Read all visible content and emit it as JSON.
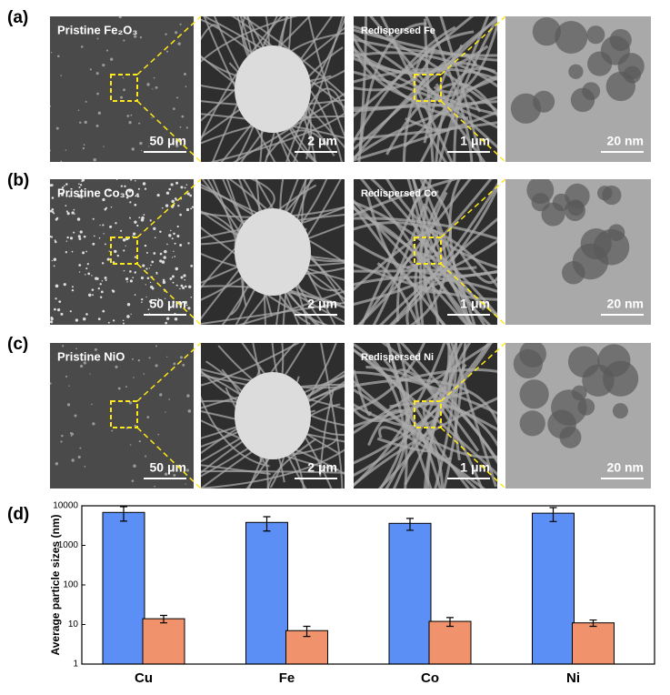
{
  "panels": [
    {
      "label": "(a)",
      "images": [
        {
          "caption": "Pristine Fe₂O₃",
          "scale": "50 μm"
        },
        {
          "scale": "2 μm"
        },
        {
          "caption": "Redispersed Fe",
          "scale": "1 μm"
        },
        {
          "scale": "20 nm"
        }
      ]
    },
    {
      "label": "(b)",
      "images": [
        {
          "caption": "Pristine Co₃O₄",
          "scale": "50 μm"
        },
        {
          "scale": "2 μm"
        },
        {
          "caption": "Redispersed Co",
          "scale": "1 μm"
        },
        {
          "scale": "20 nm"
        }
      ]
    },
    {
      "label": "(c)",
      "images": [
        {
          "caption": "Pristine NiO",
          "scale": "50 μm"
        },
        {
          "scale": "2 μm"
        },
        {
          "caption": "Redispersed Ni",
          "scale": "1 μm"
        },
        {
          "scale": "20 nm"
        }
      ]
    }
  ],
  "chart_label": "(d)",
  "chart_data": {
    "type": "bar",
    "ylabel": "Average particle sizes (nm)",
    "categories": [
      "Cu",
      "Fe",
      "Co",
      "Ni"
    ],
    "series": [
      {
        "color": "#5b8ff5",
        "values": [
          6800,
          3800,
          3600,
          6500
        ],
        "errors": [
          2700,
          1500,
          1200,
          2500
        ]
      },
      {
        "color": "#f0926b",
        "values": [
          14,
          7,
          12,
          11
        ],
        "errors": [
          3,
          2,
          3,
          2
        ]
      }
    ],
    "ylim": [
      1,
      10000
    ],
    "yticks": [
      1,
      10,
      100,
      1000,
      10000
    ],
    "log": true
  }
}
